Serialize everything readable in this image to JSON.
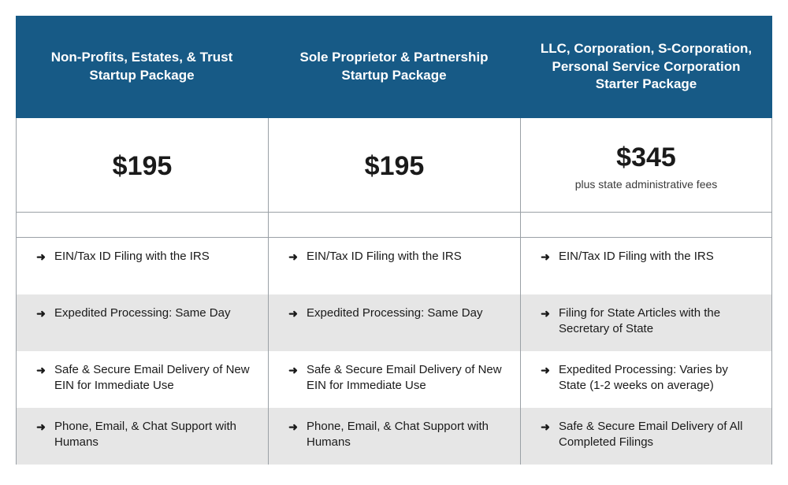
{
  "colors": {
    "header_bg": "#175a86",
    "border": "#9aa0a6",
    "row_alt_bg": "#e6e6e6",
    "row_bg": "#ffffff",
    "text_dark": "#1a1a1a",
    "header_text": "#ffffff"
  },
  "columns": [
    {
      "header": "Non-Profits, Estates, & Trust Startup Package",
      "price": "$195",
      "price_note": "",
      "features": [
        "EIN/Tax ID Filing with the IRS",
        "Expedited Processing: Same Day",
        "Safe & Secure Email Delivery of New EIN for Immediate Use",
        "Phone, Email, & Chat Support with Humans"
      ]
    },
    {
      "header": "Sole Proprietor & Partnership Startup Package",
      "price": "$195",
      "price_note": "",
      "features": [
        "EIN/Tax ID Filing with the IRS",
        "Expedited Processing: Same Day",
        "Safe & Secure Email Delivery of New EIN for Immediate Use",
        "Phone, Email, & Chat Support with Humans"
      ]
    },
    {
      "header": "LLC, Corporation, S-Corporation, Personal Service Corporation Starter Package",
      "price": "$345",
      "price_note": "plus state administrative fees",
      "features": [
        "EIN/Tax ID Filing with the IRS",
        "Filing for State Articles with the Secretary of State",
        "Expedited Processing: Varies by State (1-2 weeks on average)",
        "Safe & Secure Email Delivery of All Completed Filings"
      ]
    }
  ]
}
